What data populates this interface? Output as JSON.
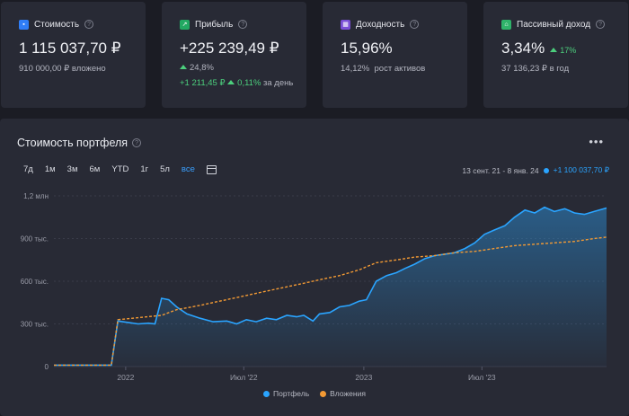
{
  "cards": [
    {
      "title": "Стоимость",
      "value": "1 115 037,70 ₽",
      "sub": "910 000,00 ₽ вложено",
      "icon": "wallet-icon",
      "icon_color": "#2f7df6"
    },
    {
      "title": "Прибыль",
      "value": "+225 239,49 ₽",
      "pct": "24,8%",
      "day_abs": "+1 211,45 ₽",
      "day_pct": "0,11%",
      "day_label": "за день",
      "icon": "chart-icon",
      "icon_color": "#22a862"
    },
    {
      "title": "Доходность",
      "value": "15,96%",
      "sub_val": "14,12%",
      "sub_label": "рост активов",
      "icon": "calendar-icon",
      "icon_color": "#7a4fd6"
    },
    {
      "title": "Пассивный доход",
      "value": "3,34%",
      "badge": "17%",
      "sub": "37 136,23 ₽ в год",
      "icon": "house-icon",
      "icon_color": "#2fb36a"
    }
  ],
  "panel": {
    "title": "Стоимость портфеля",
    "ranges": [
      "7д",
      "1м",
      "3м",
      "6м",
      "YTD",
      "1г",
      "5л",
      "все"
    ],
    "active_range": "все",
    "period": "13 сент. 21 - 8 янв. 24",
    "period_change": "+1 100 037,70 ₽"
  },
  "chart_data": {
    "type": "area",
    "x_ticks": [
      "2022",
      "Июл '22",
      "2023",
      "Июл '23"
    ],
    "y_ticks": [
      "0",
      "300 тыс.",
      "600 тыс.",
      "900 тыс.",
      "1,2 млн"
    ],
    "ylim": [
      0,
      1200000
    ],
    "x_start": "2021-09-13",
    "x_end": "2024-01-08",
    "legend_position": "bottom",
    "series": [
      {
        "name": "Портфель",
        "color": "#2aa4ff",
        "x": [
          "2021-09-13",
          "2021-12-10",
          "2021-12-20",
          "2022-01-05",
          "2022-01-20",
          "2022-02-05",
          "2022-02-15",
          "2022-02-25",
          "2022-03-08",
          "2022-03-20",
          "2022-04-05",
          "2022-04-25",
          "2022-05-15",
          "2022-06-05",
          "2022-06-20",
          "2022-07-05",
          "2022-07-20",
          "2022-08-05",
          "2022-08-20",
          "2022-09-05",
          "2022-09-20",
          "2022-10-01",
          "2022-10-15",
          "2022-10-25",
          "2022-11-10",
          "2022-11-25",
          "2022-12-10",
          "2022-12-25",
          "2023-01-05",
          "2023-01-20",
          "2023-02-05",
          "2023-02-20",
          "2023-03-05",
          "2023-03-20",
          "2023-04-05",
          "2023-04-20",
          "2023-05-05",
          "2023-05-20",
          "2023-06-05",
          "2023-06-20",
          "2023-07-05",
          "2023-07-20",
          "2023-08-05",
          "2023-08-20",
          "2023-09-05",
          "2023-09-20",
          "2023-10-05",
          "2023-10-20",
          "2023-11-05",
          "2023-11-20",
          "2023-12-05",
          "2023-12-20",
          "2024-01-08"
        ],
        "values": [
          10000,
          10000,
          320000,
          310000,
          300000,
          305000,
          300000,
          480000,
          470000,
          420000,
          370000,
          340000,
          315000,
          320000,
          300000,
          330000,
          315000,
          340000,
          330000,
          360000,
          350000,
          360000,
          320000,
          370000,
          380000,
          420000,
          430000,
          460000,
          470000,
          600000,
          640000,
          660000,
          690000,
          720000,
          760000,
          780000,
          790000,
          800000,
          830000,
          870000,
          930000,
          960000,
          990000,
          1050000,
          1100000,
          1080000,
          1120000,
          1090000,
          1110000,
          1080000,
          1070000,
          1090000,
          1115000
        ]
      },
      {
        "name": "Вложения",
        "color": "#f39a34",
        "x": [
          "2021-09-13",
          "2021-12-10",
          "2021-12-20",
          "2022-02-25",
          "2022-03-20",
          "2022-04-25",
          "2022-05-25",
          "2022-06-25",
          "2022-07-25",
          "2022-08-25",
          "2022-09-25",
          "2022-10-25",
          "2022-11-25",
          "2022-12-25",
          "2023-01-20",
          "2023-02-20",
          "2023-03-20",
          "2023-04-20",
          "2023-05-20",
          "2023-06-20",
          "2023-07-20",
          "2023-08-20",
          "2023-09-20",
          "2023-10-20",
          "2023-11-20",
          "2023-12-20",
          "2024-01-08"
        ],
        "values": [
          10000,
          10000,
          330000,
          360000,
          400000,
          430000,
          460000,
          490000,
          520000,
          550000,
          580000,
          610000,
          640000,
          680000,
          730000,
          750000,
          770000,
          780000,
          800000,
          810000,
          830000,
          850000,
          860000,
          870000,
          880000,
          900000,
          910000
        ]
      }
    ]
  }
}
